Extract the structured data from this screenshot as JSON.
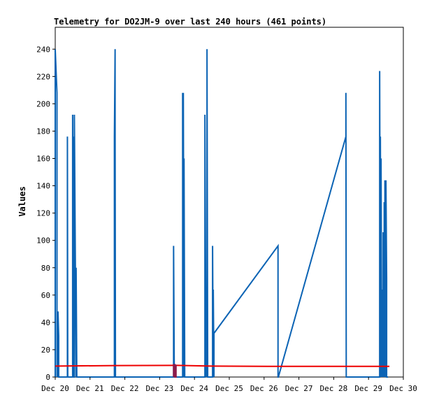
{
  "chart_data": {
    "type": "line",
    "title": "Telemetry for DO2JM-9 over last 240 hours (461 points)",
    "xlabel": "",
    "ylabel": "Values",
    "ylim": [
      0,
      256
    ],
    "xlim": [
      20.0,
      30.0
    ],
    "yticks": [
      0,
      20,
      40,
      60,
      80,
      100,
      120,
      140,
      160,
      180,
      200,
      220,
      240
    ],
    "xticks": [
      {
        "x": 20,
        "label": "Dec 20"
      },
      {
        "x": 21,
        "label": "Dec 21"
      },
      {
        "x": 22,
        "label": "Dec 22"
      },
      {
        "x": 23,
        "label": "Dec 23"
      },
      {
        "x": 24,
        "label": "Dec 24"
      },
      {
        "x": 25,
        "label": "Dec 25"
      },
      {
        "x": 26,
        "label": "Dec 26"
      },
      {
        "x": 27,
        "label": "Dec 27"
      },
      {
        "x": 28,
        "label": "Dec 28"
      },
      {
        "x": 29,
        "label": "Dec 29"
      },
      {
        "x": 30,
        "label": "Dec 30"
      }
    ],
    "grid": false,
    "legend": "none",
    "series": [
      {
        "color": "#0b63b4",
        "x": [
          20.0,
          20.0,
          20.05,
          20.05,
          20.06,
          20.06,
          20.08,
          20.1,
          20.1,
          20.12,
          20.35,
          20.35,
          20.36,
          20.36,
          20.5,
          20.5,
          20.52,
          20.52,
          20.53,
          20.53,
          20.55,
          20.55,
          20.6,
          20.6,
          20.62,
          20.62,
          20.64,
          20.64,
          20.65,
          21.7,
          21.7,
          21.72,
          21.72,
          21.73,
          21.73,
          23.4,
          23.4,
          23.42,
          23.66,
          23.66,
          23.68,
          23.68,
          23.7,
          23.7,
          23.72,
          23.72,
          23.74,
          23.74,
          24.3,
          24.3,
          24.33,
          24.33,
          24.36,
          24.36,
          24.38,
          24.38,
          24.52,
          24.52,
          24.54,
          24.54,
          24.56,
          24.56,
          26.4,
          26.4,
          26.41,
          28.35,
          28.35,
          28.36,
          29.32,
          29.32,
          29.34,
          29.34,
          29.36,
          29.36,
          29.38,
          29.38,
          29.4,
          29.4,
          29.42,
          29.42,
          29.45,
          29.45,
          29.47,
          29.47,
          29.5,
          29.5,
          29.52,
          29.52,
          29.54,
          29.54,
          29.56,
          29.56
        ],
        "y": [
          0,
          240,
          208,
          0,
          48,
          0,
          48,
          30,
          0,
          0,
          0,
          176,
          0,
          0,
          0,
          192,
          0,
          176,
          0,
          0,
          0,
          192,
          0,
          80,
          0,
          0,
          0,
          0,
          0,
          0,
          176,
          240,
          176,
          0,
          0,
          0,
          96,
          0,
          0,
          208,
          0,
          208,
          0,
          160,
          0,
          0,
          0,
          0,
          0,
          192,
          0,
          64,
          0,
          240,
          0,
          0,
          0,
          96,
          0,
          64,
          0,
          32,
          96,
          0,
          0,
          176,
          208,
          0,
          0,
          224,
          0,
          176,
          0,
          160,
          0,
          64,
          0,
          24,
          0,
          106,
          0,
          128,
          0,
          144,
          0,
          144,
          72,
          0,
          0,
          0,
          0,
          0
        ]
      },
      {
        "color": "#ee0000",
        "x": [
          20.0,
          21.75,
          23.4,
          23.5,
          24.5,
          26.4,
          29.35,
          29.6
        ],
        "y": [
          8,
          8.4,
          8.5,
          8.5,
          8,
          7.8,
          7.8,
          7.8
        ]
      },
      {
        "color": "#8b1a4a",
        "x": [
          23.4,
          23.4,
          23.44,
          23.44,
          23.47,
          23.47
        ],
        "y": [
          0,
          9,
          9,
          0,
          0,
          9
        ]
      }
    ]
  }
}
